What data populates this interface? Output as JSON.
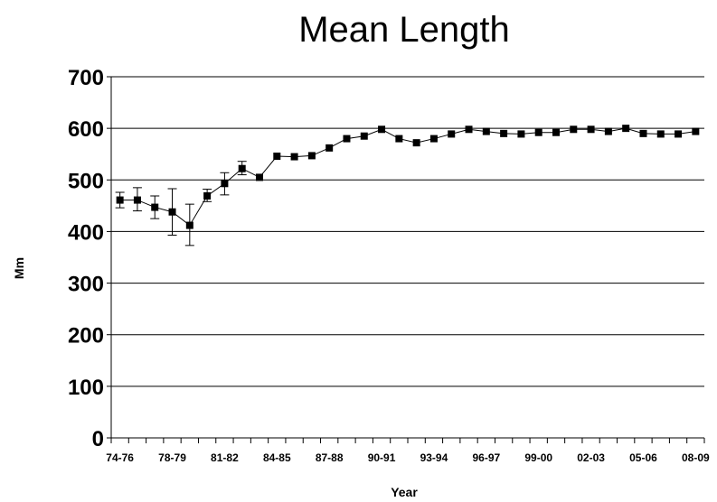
{
  "chart_data": {
    "type": "line",
    "title": "Mean Length",
    "xlabel": "Year",
    "ylabel": "Mm",
    "ylim": [
      0,
      700
    ],
    "y_ticks": [
      0,
      100,
      200,
      300,
      400,
      500,
      600,
      700
    ],
    "grid": "horizontal",
    "legend": "none",
    "categories": [
      "74-76",
      "",
      "",
      "78-79",
      "",
      "",
      "81-82",
      "",
      "",
      "84-85",
      "",
      "",
      "87-88",
      "",
      "",
      "90-91",
      "",
      "",
      "93-94",
      "",
      "",
      "96-97",
      "",
      "",
      "99-00",
      "",
      "",
      "02-03",
      "",
      "",
      "05-06",
      "",
      "",
      "08-09"
    ],
    "x_tick_labels": [
      "74-76",
      "78-79",
      "81-82",
      "84-85",
      "87-88",
      "90-91",
      "93-94",
      "96-97",
      "99-00",
      "02-03",
      "05-06",
      "08-09"
    ],
    "series": [
      {
        "values": [
          461,
          461,
          447,
          438,
          412,
          469,
          493,
          522,
          505,
          546,
          545,
          547,
          562,
          580,
          585,
          598,
          580,
          572,
          580,
          589,
          598,
          594,
          590,
          589,
          592,
          592,
          598,
          598,
          594,
          600,
          590,
          589,
          589,
          594
        ],
        "error_low": [
          446,
          440,
          425,
          393,
          373,
          458,
          471,
          510,
          null,
          null,
          null,
          null,
          null,
          null,
          null,
          null,
          null,
          null,
          null,
          null,
          null,
          null,
          null,
          null,
          null,
          null,
          null,
          null,
          null,
          null,
          null,
          null,
          null,
          null
        ],
        "error_high": [
          476,
          485,
          469,
          483,
          453,
          482,
          514,
          536,
          null,
          null,
          null,
          null,
          null,
          null,
          null,
          null,
          null,
          null,
          null,
          null,
          null,
          null,
          null,
          null,
          null,
          null,
          null,
          null,
          null,
          null,
          null,
          null,
          null,
          null
        ]
      }
    ],
    "colors": {
      "line": "#000000",
      "marker": "#000000",
      "grid": "#000000"
    }
  }
}
